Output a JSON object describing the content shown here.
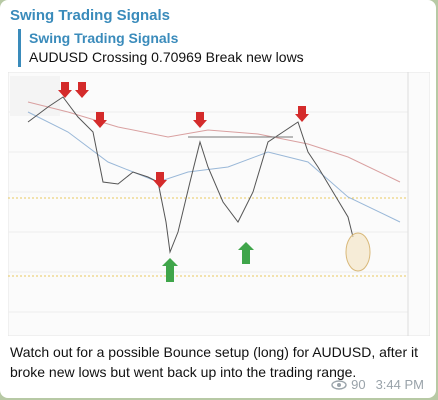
{
  "header": {
    "channel": "Swing Trading Signals"
  },
  "quote": {
    "author": "Swing Trading Signals",
    "text": "AUDUSD Crossing 0.70969 Break new lows"
  },
  "message": {
    "text": "Watch out for a possible Bounce setup (long) for AUDUSD, after it broke new lows but went back up into the trading range.",
    "views": "90",
    "time": "3:44 PM"
  }
}
